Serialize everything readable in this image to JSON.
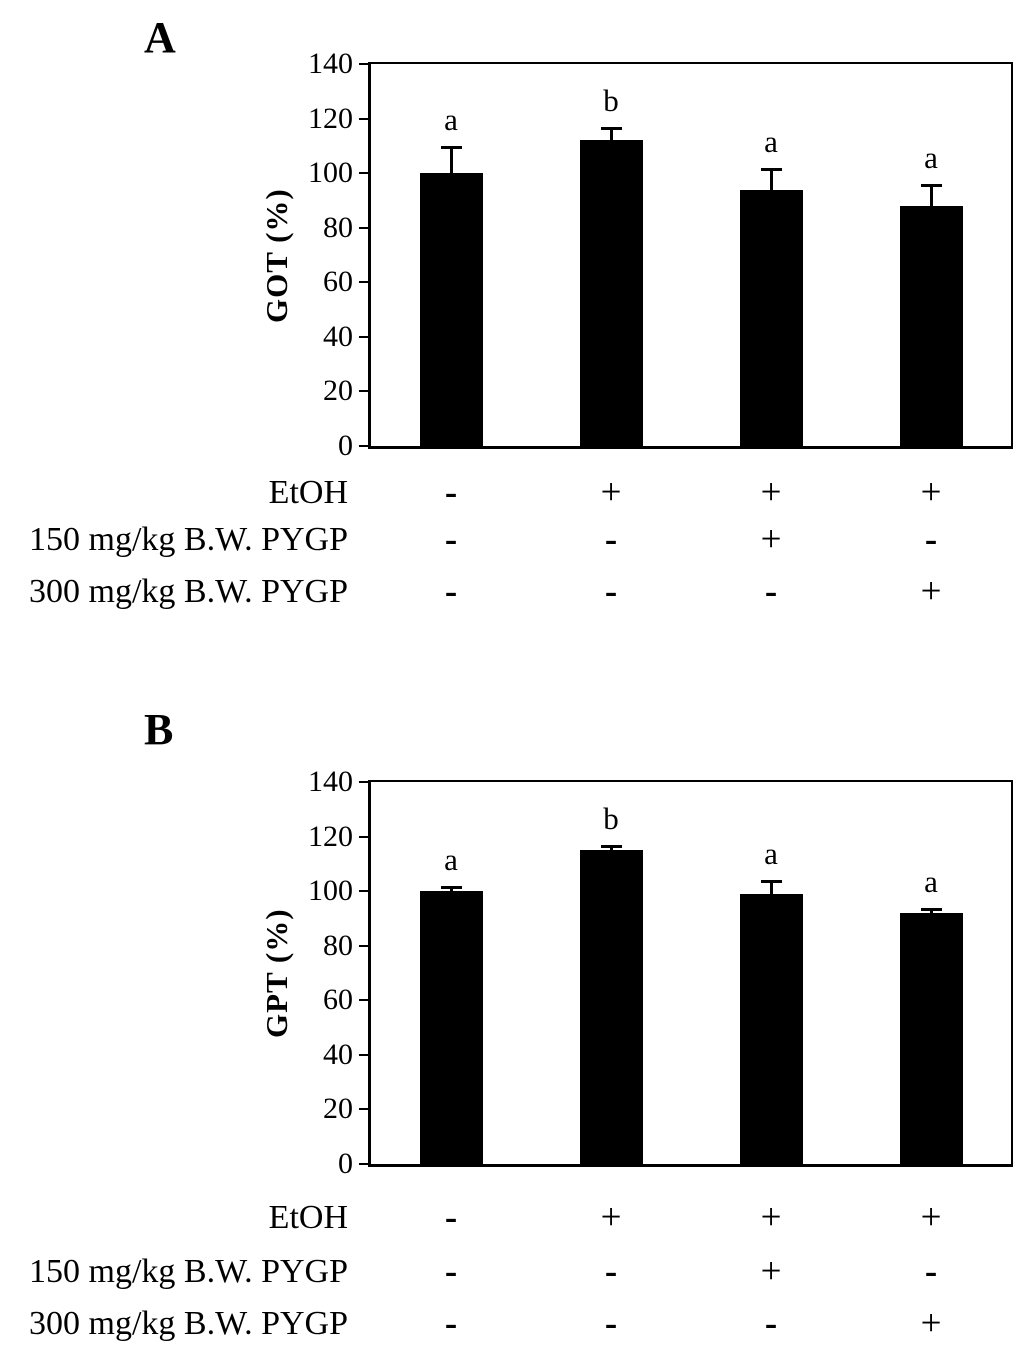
{
  "chart_data": [
    {
      "type": "bar",
      "panel_letter": "A",
      "ylabel": "GOT (%)",
      "ylim": [
        0,
        140
      ],
      "yticks": [
        0,
        20,
        40,
        60,
        80,
        100,
        120,
        140
      ],
      "bar_color": "#000000",
      "grid": "off",
      "values": [
        100,
        112,
        94,
        88
      ],
      "errors_upper": [
        10,
        5,
        8,
        8
      ],
      "sig_letters": [
        "a",
        "b",
        "a",
        "a"
      ],
      "x_table_rows": [
        {
          "label": "EtOH",
          "signs": [
            "-",
            "+",
            "+",
            "+"
          ]
        },
        {
          "label": "150 mg/kg B.W. PYGP",
          "signs": [
            "-",
            "-",
            "+",
            "-"
          ]
        },
        {
          "label": "300 mg/kg B.W. PYGP",
          "signs": [
            "-",
            "-",
            "-",
            "+"
          ]
        }
      ]
    },
    {
      "type": "bar",
      "panel_letter": "B",
      "ylabel": "GPT (%)",
      "ylim": [
        0,
        140
      ],
      "yticks": [
        0,
        20,
        40,
        60,
        80,
        100,
        120,
        140
      ],
      "bar_color": "#000000",
      "grid": "off",
      "values": [
        100,
        115,
        99,
        92
      ],
      "errors_upper": [
        2,
        2,
        5,
        2
      ],
      "sig_letters": [
        "a",
        "b",
        "a",
        "a"
      ],
      "x_table_rows": [
        {
          "label": "EtOH",
          "signs": [
            "-",
            "+",
            "+",
            "+"
          ]
        },
        {
          "label": "150 mg/kg B.W. PYGP",
          "signs": [
            "-",
            "-",
            "+",
            "-"
          ]
        },
        {
          "label": "300 mg/kg B.W. PYGP",
          "signs": [
            "-",
            "-",
            "-",
            "+"
          ]
        }
      ]
    }
  ]
}
